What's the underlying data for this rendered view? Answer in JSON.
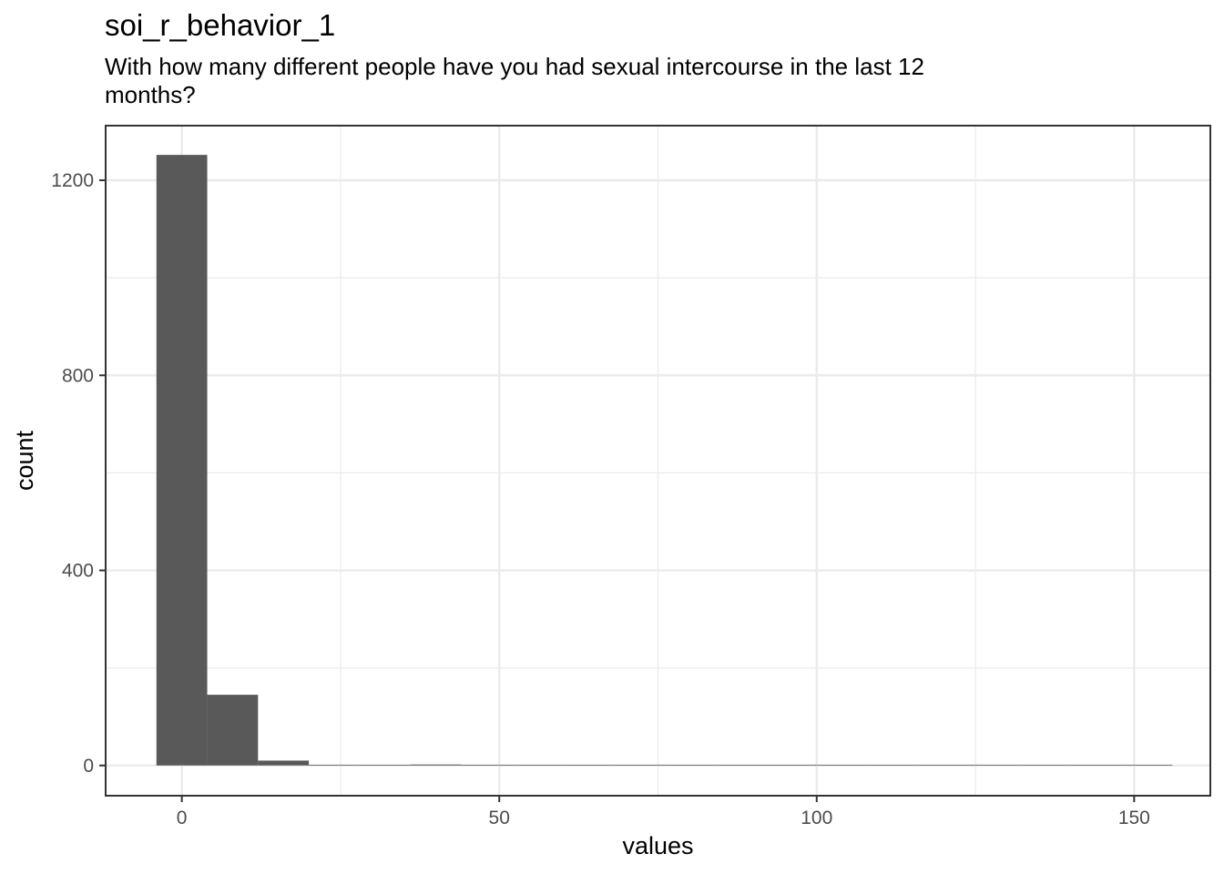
{
  "chart_data": {
    "type": "bar",
    "title": "soi_r_behavior_1",
    "subtitle": "With how many different people have you had sexual intercourse in the last 12 months?",
    "xlabel": "values",
    "ylabel": "count",
    "xlim": [
      -12,
      162
    ],
    "ylim": [
      -62,
      1312
    ],
    "x_ticks": [
      0,
      50,
      100,
      150
    ],
    "y_ticks": [
      0,
      400,
      800,
      1200
    ],
    "grid": true,
    "bar_color": "#595959",
    "bins": [
      {
        "x0": -4,
        "x1": 4,
        "count": 1252
      },
      {
        "x0": 4,
        "x1": 12,
        "count": 145
      },
      {
        "x0": 12,
        "x1": 20,
        "count": 10
      },
      {
        "x0": 20,
        "x1": 28,
        "count": 0
      },
      {
        "x0": 28,
        "x1": 36,
        "count": 0
      },
      {
        "x0": 36,
        "x1": 44,
        "count": 2
      },
      {
        "x0": 44,
        "x1": 52,
        "count": 0
      },
      {
        "x0": 52,
        "x1": 60,
        "count": 0
      },
      {
        "x0": 60,
        "x1": 68,
        "count": 0
      },
      {
        "x0": 68,
        "x1": 76,
        "count": 0
      },
      {
        "x0": 76,
        "x1": 84,
        "count": 0
      },
      {
        "x0": 84,
        "x1": 92,
        "count": 0
      },
      {
        "x0": 92,
        "x1": 100,
        "count": 0
      },
      {
        "x0": 100,
        "x1": 108,
        "count": 0
      },
      {
        "x0": 108,
        "x1": 116,
        "count": 0
      },
      {
        "x0": 116,
        "x1": 124,
        "count": 0
      },
      {
        "x0": 124,
        "x1": 132,
        "count": 0
      },
      {
        "x0": 132,
        "x1": 140,
        "count": 0
      },
      {
        "x0": 140,
        "x1": 148,
        "count": 0
      },
      {
        "x0": 148,
        "x1": 156,
        "count": 1
      }
    ]
  }
}
